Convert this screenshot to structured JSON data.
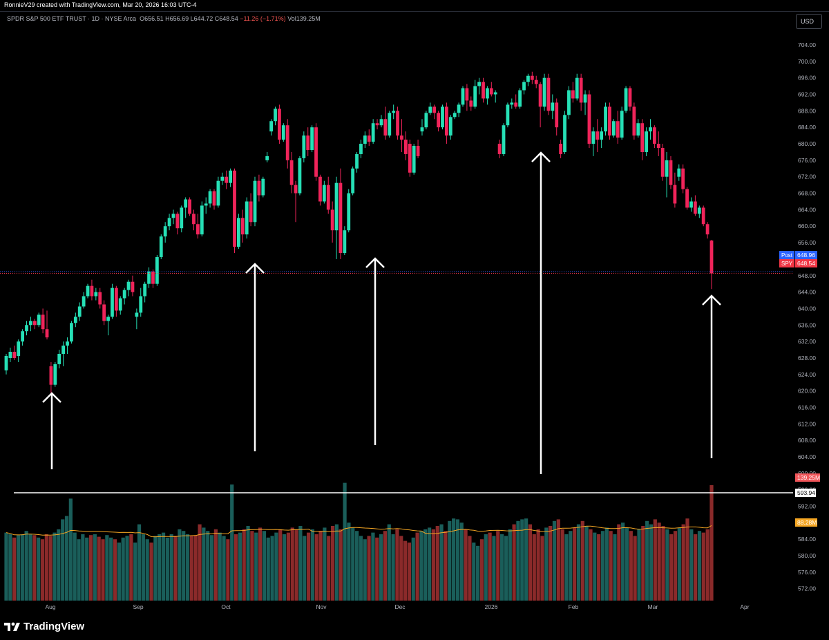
{
  "header": {
    "attribution": "RonnieV29 created with TradingView.com, Mar 20, 2026 16:03 UTC-4"
  },
  "legend": {
    "symbol_name": "SPDR S&P 500 ETF TRUST · 1D · NYSE Arca",
    "open": "O656.51",
    "high": "H656.69",
    "low": "L644.72",
    "close": "C648.54",
    "change": "−11.26 (−1.71%)",
    "volume": "Vol139.25M"
  },
  "currency_button": "USD",
  "branding": "TradingView",
  "colors": {
    "up": "#26e0b6",
    "down": "#f0245a",
    "vol_up": "#1a5e5a",
    "vol_down": "#8a2a2a",
    "ma": "#f5a623",
    "post_badge": "#2962ff",
    "spy_badge": "#f23645",
    "hline": "#ffffff"
  },
  "chart_data": {
    "type": "candlestick",
    "symbol": "SPY",
    "y_axis_labels": [
      "704.00",
      "700.00",
      "696.00",
      "692.00",
      "688.00",
      "684.00",
      "680.00",
      "676.00",
      "672.00",
      "668.00",
      "664.00",
      "660.00",
      "656.00",
      "652.00",
      "648.00",
      "644.00",
      "640.00",
      "636.00",
      "632.00",
      "628.00",
      "624.00",
      "620.00",
      "616.00",
      "612.00",
      "608.00",
      "604.00",
      "600.00",
      "596.00",
      "592.00",
      "588.00",
      "584.00",
      "580.00",
      "576.00",
      "572.00"
    ],
    "x_axis_labels": [
      "Aug",
      "Sep",
      "Oct",
      "Nov",
      "Dec",
      "2026",
      "Feb",
      "Mar",
      "Apr"
    ],
    "price_badges": [
      {
        "label": "Post",
        "value": "648.96"
      },
      {
        "label": "SPY",
        "value": "648.54"
      }
    ],
    "volume_badges": [
      {
        "value": "139.25M"
      },
      {
        "value": "88.28M"
      }
    ],
    "horizontal_line_label": "593.94",
    "ohlc": [
      {
        "o": 625,
        "h": 629,
        "l": 624,
        "c": 628.5
      },
      {
        "o": 628,
        "h": 630.5,
        "l": 627,
        "c": 629.5
      },
      {
        "o": 629.5,
        "h": 631,
        "l": 627.5,
        "c": 628
      },
      {
        "o": 628.5,
        "h": 632.5,
        "l": 627,
        "c": 632
      },
      {
        "o": 632,
        "h": 635,
        "l": 631,
        "c": 634.5
      },
      {
        "o": 634.5,
        "h": 637,
        "l": 633.5,
        "c": 636
      },
      {
        "o": 636,
        "h": 638,
        "l": 634.5,
        "c": 637
      },
      {
        "o": 637,
        "h": 637.5,
        "l": 635,
        "c": 636
      },
      {
        "o": 636,
        "h": 639,
        "l": 635.5,
        "c": 638.5
      },
      {
        "o": 638.5,
        "h": 640,
        "l": 634,
        "c": 635
      },
      {
        "o": 635,
        "h": 639.5,
        "l": 632.5,
        "c": 633
      },
      {
        "o": 626,
        "h": 627,
        "l": 619.5,
        "c": 621.5
      },
      {
        "o": 621.5,
        "h": 627,
        "l": 621,
        "c": 626.5
      },
      {
        "o": 626.5,
        "h": 630,
        "l": 625.5,
        "c": 629
      },
      {
        "o": 629,
        "h": 632,
        "l": 626,
        "c": 631
      },
      {
        "o": 631,
        "h": 633,
        "l": 629,
        "c": 632
      },
      {
        "o": 632,
        "h": 637,
        "l": 631.5,
        "c": 636.5
      },
      {
        "o": 636.5,
        "h": 639,
        "l": 635.5,
        "c": 638
      },
      {
        "o": 638,
        "h": 641.5,
        "l": 637,
        "c": 640.5
      },
      {
        "o": 640.5,
        "h": 644,
        "l": 640,
        "c": 643
      },
      {
        "o": 643,
        "h": 646,
        "l": 642.5,
        "c": 645.5
      },
      {
        "o": 645.5,
        "h": 647,
        "l": 642,
        "c": 643
      },
      {
        "o": 643,
        "h": 645,
        "l": 642,
        "c": 644
      },
      {
        "o": 644,
        "h": 645,
        "l": 640,
        "c": 641
      },
      {
        "o": 641,
        "h": 642,
        "l": 636,
        "c": 637
      },
      {
        "o": 637,
        "h": 638.5,
        "l": 633.5,
        "c": 638
      },
      {
        "o": 638,
        "h": 646,
        "l": 637.5,
        "c": 645
      },
      {
        "o": 645,
        "h": 645.5,
        "l": 638,
        "c": 639.5
      },
      {
        "o": 639.5,
        "h": 643,
        "l": 638.5,
        "c": 642.5
      },
      {
        "o": 642.5,
        "h": 645,
        "l": 641,
        "c": 644.5
      },
      {
        "o": 644.5,
        "h": 647,
        "l": 643,
        "c": 646.5
      },
      {
        "o": 646.5,
        "h": 648,
        "l": 643,
        "c": 644
      },
      {
        "o": 638,
        "h": 640,
        "l": 635,
        "c": 639
      },
      {
        "o": 639,
        "h": 645,
        "l": 638,
        "c": 643
      },
      {
        "o": 643,
        "h": 646.5,
        "l": 641.5,
        "c": 646
      },
      {
        "o": 646,
        "h": 650,
        "l": 645,
        "c": 649
      },
      {
        "o": 649,
        "h": 649.5,
        "l": 645,
        "c": 646
      },
      {
        "o": 646,
        "h": 653,
        "l": 645.5,
        "c": 652.5
      },
      {
        "o": 652.5,
        "h": 658,
        "l": 652,
        "c": 657.5
      },
      {
        "o": 657.5,
        "h": 661,
        "l": 656,
        "c": 660
      },
      {
        "o": 660,
        "h": 663,
        "l": 659,
        "c": 662
      },
      {
        "o": 662,
        "h": 664,
        "l": 660.5,
        "c": 663
      },
      {
        "o": 663,
        "h": 663.5,
        "l": 658,
        "c": 659.5
      },
      {
        "o": 659.5,
        "h": 665,
        "l": 658.5,
        "c": 664.5
      },
      {
        "o": 664.5,
        "h": 667,
        "l": 662,
        "c": 666.5
      },
      {
        "o": 666.5,
        "h": 667,
        "l": 662.5,
        "c": 663
      },
      {
        "o": 663,
        "h": 664,
        "l": 659,
        "c": 660.5
      },
      {
        "o": 660.5,
        "h": 663,
        "l": 657,
        "c": 658
      },
      {
        "o": 658,
        "h": 666,
        "l": 657.5,
        "c": 665
      },
      {
        "o": 665,
        "h": 667,
        "l": 663,
        "c": 665.5
      },
      {
        "o": 665.5,
        "h": 669,
        "l": 664.5,
        "c": 668.5
      },
      {
        "o": 668.5,
        "h": 669,
        "l": 664,
        "c": 665
      },
      {
        "o": 665,
        "h": 672,
        "l": 664.5,
        "c": 671
      },
      {
        "o": 671,
        "h": 673,
        "l": 670,
        "c": 672
      },
      {
        "o": 672,
        "h": 673.5,
        "l": 669,
        "c": 670.5
      },
      {
        "o": 670.5,
        "h": 674,
        "l": 669.5,
        "c": 673.5
      },
      {
        "o": 673.5,
        "h": 674,
        "l": 653.5,
        "c": 655
      },
      {
        "o": 655,
        "h": 663,
        "l": 654.5,
        "c": 662
      },
      {
        "o": 662,
        "h": 664,
        "l": 656,
        "c": 658
      },
      {
        "o": 658,
        "h": 667,
        "l": 657,
        "c": 666
      },
      {
        "o": 666,
        "h": 668,
        "l": 660,
        "c": 661
      },
      {
        "o": 661,
        "h": 672,
        "l": 660,
        "c": 671
      },
      {
        "o": 671,
        "h": 672.5,
        "l": 666,
        "c": 667.5
      },
      {
        "o": 667.5,
        "h": 672,
        "l": 667,
        "c": 671.5
      },
      {
        "o": 676,
        "h": 678,
        "l": 675.5,
        "c": 677
      },
      {
        "o": 683,
        "h": 686,
        "l": 682,
        "c": 685.5
      },
      {
        "o": 685.5,
        "h": 689,
        "l": 684.5,
        "c": 688.5
      },
      {
        "o": 688.5,
        "h": 689.5,
        "l": 680,
        "c": 681
      },
      {
        "o": 681,
        "h": 685,
        "l": 680.5,
        "c": 684.5
      },
      {
        "o": 684.5,
        "h": 686,
        "l": 674,
        "c": 676
      },
      {
        "o": 676,
        "h": 678,
        "l": 668,
        "c": 670
      },
      {
        "o": 670,
        "h": 671,
        "l": 661,
        "c": 668
      },
      {
        "o": 668,
        "h": 677,
        "l": 667.5,
        "c": 676.5
      },
      {
        "o": 676.5,
        "h": 683,
        "l": 675.5,
        "c": 682
      },
      {
        "o": 682,
        "h": 684,
        "l": 677,
        "c": 678.5
      },
      {
        "o": 678.5,
        "h": 684.5,
        "l": 678,
        "c": 684
      },
      {
        "o": 684,
        "h": 685,
        "l": 671,
        "c": 672
      },
      {
        "o": 672,
        "h": 672.5,
        "l": 665,
        "c": 666
      },
      {
        "o": 666,
        "h": 671,
        "l": 665.5,
        "c": 670
      },
      {
        "o": 670,
        "h": 672,
        "l": 663,
        "c": 664
      },
      {
        "o": 664,
        "h": 666,
        "l": 656,
        "c": 659
      },
      {
        "o": 659,
        "h": 672,
        "l": 652,
        "c": 670.5
      },
      {
        "o": 670.5,
        "h": 674,
        "l": 652,
        "c": 653.5
      },
      {
        "o": 653.5,
        "h": 660,
        "l": 653,
        "c": 659
      },
      {
        "o": 659,
        "h": 669,
        "l": 658.5,
        "c": 668
      },
      {
        "o": 668,
        "h": 674.5,
        "l": 667.5,
        "c": 674
      },
      {
        "o": 674,
        "h": 678,
        "l": 673,
        "c": 677.5
      },
      {
        "o": 677.5,
        "h": 681,
        "l": 676.5,
        "c": 680
      },
      {
        "o": 680,
        "h": 683,
        "l": 679,
        "c": 682
      },
      {
        "o": 682,
        "h": 683.5,
        "l": 679.5,
        "c": 680.5
      },
      {
        "o": 680.5,
        "h": 686,
        "l": 680,
        "c": 685
      },
      {
        "o": 685,
        "h": 686,
        "l": 683.5,
        "c": 684.5
      },
      {
        "o": 684.5,
        "h": 687,
        "l": 684,
        "c": 686
      },
      {
        "o": 686,
        "h": 689,
        "l": 681,
        "c": 682
      },
      {
        "o": 682,
        "h": 688,
        "l": 681.5,
        "c": 687.5
      },
      {
        "o": 687.5,
        "h": 689.5,
        "l": 686,
        "c": 688
      },
      {
        "o": 688,
        "h": 689,
        "l": 681,
        "c": 682
      },
      {
        "o": 682,
        "h": 686,
        "l": 678,
        "c": 681
      },
      {
        "o": 681,
        "h": 683,
        "l": 676,
        "c": 677.5
      },
      {
        "o": 680,
        "h": 681,
        "l": 672,
        "c": 673
      },
      {
        "o": 673,
        "h": 680,
        "l": 672.5,
        "c": 679.5
      },
      {
        "o": 679.5,
        "h": 681,
        "l": 676.5,
        "c": 677
      },
      {
        "o": 683,
        "h": 686,
        "l": 682,
        "c": 684
      },
      {
        "o": 684,
        "h": 688,
        "l": 683.5,
        "c": 687.5
      },
      {
        "o": 687.5,
        "h": 690,
        "l": 687,
        "c": 689
      },
      {
        "o": 689,
        "h": 689.5,
        "l": 686,
        "c": 687.5
      },
      {
        "o": 687.5,
        "h": 688,
        "l": 683,
        "c": 684
      },
      {
        "o": 684,
        "h": 689.5,
        "l": 683.5,
        "c": 689
      },
      {
        "o": 689,
        "h": 690,
        "l": 680,
        "c": 682
      },
      {
        "o": 682,
        "h": 687,
        "l": 681,
        "c": 686.5
      },
      {
        "o": 686.5,
        "h": 688,
        "l": 686,
        "c": 687.5
      },
      {
        "o": 687.5,
        "h": 690,
        "l": 686.5,
        "c": 689.5
      },
      {
        "o": 689.5,
        "h": 694,
        "l": 689,
        "c": 693.5
      },
      {
        "o": 693.5,
        "h": 694.5,
        "l": 688,
        "c": 690.5
      },
      {
        "o": 690.5,
        "h": 691.5,
        "l": 688,
        "c": 689
      },
      {
        "o": 689,
        "h": 695.5,
        "l": 688.5,
        "c": 694
      },
      {
        "o": 694,
        "h": 696,
        "l": 692,
        "c": 695
      },
      {
        "o": 695,
        "h": 696,
        "l": 690,
        "c": 691
      },
      {
        "o": 691,
        "h": 694,
        "l": 689.5,
        "c": 693.5
      },
      {
        "o": 693.5,
        "h": 695,
        "l": 691.5,
        "c": 692
      },
      {
        "o": 692,
        "h": 693,
        "l": 690,
        "c": 692.5
      },
      {
        "o": 680,
        "h": 681,
        "l": 676.5,
        "c": 677.5
      },
      {
        "o": 677.5,
        "h": 685,
        "l": 677,
        "c": 684.5
      },
      {
        "o": 684.5,
        "h": 690,
        "l": 684,
        "c": 689.5
      },
      {
        "o": 689.5,
        "h": 691,
        "l": 688.5,
        "c": 690
      },
      {
        "o": 690,
        "h": 692,
        "l": 688.5,
        "c": 689
      },
      {
        "o": 689,
        "h": 693.5,
        "l": 688.5,
        "c": 693
      },
      {
        "o": 693,
        "h": 695.5,
        "l": 692,
        "c": 695
      },
      {
        "o": 695,
        "h": 697,
        "l": 694,
        "c": 696.5
      },
      {
        "o": 696.5,
        "h": 697.5,
        "l": 694.5,
        "c": 695.5
      },
      {
        "o": 695.5,
        "h": 696.5,
        "l": 693.5,
        "c": 694.5
      },
      {
        "o": 694.5,
        "h": 695,
        "l": 684,
        "c": 689
      },
      {
        "o": 689,
        "h": 697,
        "l": 688,
        "c": 696
      },
      {
        "o": 696,
        "h": 697,
        "l": 687,
        "c": 688
      },
      {
        "o": 688,
        "h": 692,
        "l": 686,
        "c": 690
      },
      {
        "o": 690,
        "h": 691,
        "l": 682,
        "c": 684
      },
      {
        "o": 680,
        "h": 681,
        "l": 676.5,
        "c": 677.5
      },
      {
        "o": 678,
        "h": 688,
        "l": 677.5,
        "c": 687
      },
      {
        "o": 687,
        "h": 694,
        "l": 686,
        "c": 693
      },
      {
        "o": 693,
        "h": 695,
        "l": 690,
        "c": 691
      },
      {
        "o": 691,
        "h": 697,
        "l": 690.5,
        "c": 696
      },
      {
        "o": 696,
        "h": 697,
        "l": 688,
        "c": 690
      },
      {
        "o": 690,
        "h": 693,
        "l": 687,
        "c": 692
      },
      {
        "o": 692,
        "h": 693,
        "l": 679,
        "c": 680
      },
      {
        "o": 680,
        "h": 684,
        "l": 677,
        "c": 683
      },
      {
        "o": 683,
        "h": 686,
        "l": 678,
        "c": 681
      },
      {
        "o": 681,
        "h": 684,
        "l": 679,
        "c": 683
      },
      {
        "o": 683,
        "h": 690,
        "l": 682,
        "c": 689
      },
      {
        "o": 689,
        "h": 690,
        "l": 681,
        "c": 682
      },
      {
        "o": 682,
        "h": 686,
        "l": 681.5,
        "c": 685.5
      },
      {
        "o": 685.5,
        "h": 688,
        "l": 680,
        "c": 681.5
      },
      {
        "o": 681.5,
        "h": 689,
        "l": 681,
        "c": 688
      },
      {
        "o": 688,
        "h": 694,
        "l": 687.5,
        "c": 693.5
      },
      {
        "o": 693.5,
        "h": 694,
        "l": 688,
        "c": 689
      },
      {
        "o": 689,
        "h": 690,
        "l": 681,
        "c": 682
      },
      {
        "o": 682,
        "h": 686,
        "l": 681.5,
        "c": 685
      },
      {
        "o": 685,
        "h": 686,
        "l": 676,
        "c": 678
      },
      {
        "o": 678,
        "h": 684,
        "l": 677,
        "c": 683
      },
      {
        "o": 683,
        "h": 686,
        "l": 681,
        "c": 684
      },
      {
        "o": 684,
        "h": 684.5,
        "l": 679,
        "c": 680
      },
      {
        "o": 680,
        "h": 683,
        "l": 677,
        "c": 679
      },
      {
        "o": 679,
        "h": 680,
        "l": 671,
        "c": 672
      },
      {
        "o": 672,
        "h": 678,
        "l": 667,
        "c": 676
      },
      {
        "o": 676,
        "h": 677,
        "l": 669,
        "c": 670
      },
      {
        "o": 670,
        "h": 673,
        "l": 664.5,
        "c": 665.5
      },
      {
        "o": 672,
        "h": 675,
        "l": 671,
        "c": 674
      },
      {
        "o": 674,
        "h": 675,
        "l": 668,
        "c": 669
      },
      {
        "o": 669,
        "h": 669.5,
        "l": 664,
        "c": 664.5
      },
      {
        "o": 664.5,
        "h": 667,
        "l": 663.5,
        "c": 666
      },
      {
        "o": 666,
        "h": 667.5,
        "l": 662.5,
        "c": 663
      },
      {
        "o": 663,
        "h": 665,
        "l": 662,
        "c": 664.5
      },
      {
        "o": 664.5,
        "h": 665,
        "l": 660,
        "c": 660.5
      },
      {
        "o": 660.5,
        "h": 661,
        "l": 657,
        "c": 658
      },
      {
        "o": 656.51,
        "h": 656.69,
        "l": 644.72,
        "c": 648.54
      }
    ],
    "volumes_m": [
      82,
      80,
      76,
      79,
      80,
      84,
      80,
      79,
      76,
      74,
      80,
      78,
      82,
      86,
      98,
      102,
      123,
      82,
      74,
      80,
      76,
      79,
      80,
      77,
      74,
      79,
      76,
      74,
      70,
      76,
      78,
      80,
      70,
      92,
      80,
      74,
      70,
      78,
      80,
      82,
      76,
      80,
      78,
      86,
      84,
      80,
      78,
      79,
      92,
      88,
      84,
      79,
      86,
      82,
      78,
      74,
      140,
      80,
      82,
      86,
      90,
      84,
      82,
      88,
      84,
      76,
      78,
      82,
      86,
      80,
      82,
      88,
      86,
      90,
      78,
      82,
      86,
      80,
      84,
      88,
      78,
      90,
      92,
      86,
      142,
      94,
      88,
      84,
      78,
      74,
      78,
      82,
      76,
      80,
      84,
      92,
      80,
      86,
      78,
      72,
      70,
      76,
      82,
      84,
      86,
      88,
      86,
      90,
      92,
      84,
      96,
      99,
      98,
      94,
      86,
      78,
      70,
      66,
      74,
      80,
      82,
      78,
      84,
      80,
      78,
      86,
      92,
      96,
      98,
      99,
      92,
      80,
      86,
      78,
      88,
      90,
      96,
      98,
      86,
      80,
      84,
      88,
      92,
      96,
      90,
      86,
      82,
      80,
      84,
      88,
      84,
      80,
      92,
      94,
      88,
      84,
      78,
      86,
      90,
      96,
      92,
      98,
      94,
      90,
      86,
      80,
      84,
      88,
      92,
      99,
      86,
      80,
      84,
      82,
      86,
      139.25
    ],
    "volume_ma_m": 88.28,
    "annotations": [
      "up-arrow",
      "up-arrow",
      "up-arrow",
      "up-arrow",
      "up-arrow"
    ]
  }
}
